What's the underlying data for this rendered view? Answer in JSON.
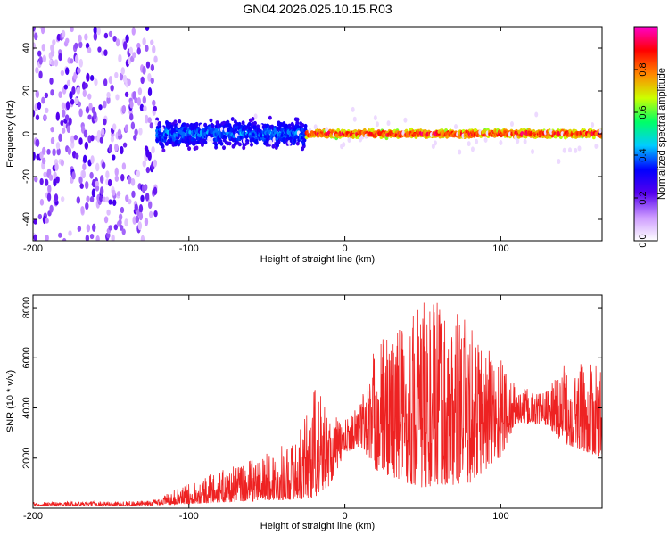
{
  "title": "GN04.2026.025.10.15.R03",
  "chart_data": [
    {
      "type": "heatmap",
      "name": "spectrogram",
      "xlabel": "Height of straight line (km)",
      "ylabel": "Frequency (Hz)",
      "xlim": [
        -200,
        165
      ],
      "ylim": [
        -50,
        50
      ],
      "xticks": [
        -200,
        -100,
        0,
        100
      ],
      "yticks": [
        -40,
        -20,
        0,
        20,
        40
      ],
      "colorbar": {
        "label": "Normalized spectral amplitude",
        "range": [
          0,
          1
        ],
        "ticks": [
          0.0,
          0.2,
          0.4,
          0.6,
          0.8
        ],
        "tick_labels": [
          "0.0",
          "0.2",
          "0.4",
          "0.6",
          "0.8"
        ],
        "colormap": [
          "#ffffff",
          "#cc99ff",
          "#5500ee",
          "#0000ff",
          "#00ccff",
          "#00ff66",
          "#ccff00",
          "#ff8800",
          "#ff0000",
          "#ff00cc"
        ]
      },
      "regions": [
        {
          "x": [
            -200,
            -122
          ],
          "description": "broadband noise",
          "amplitude": [
            0.05,
            0.25
          ],
          "freq_spread": 50
        },
        {
          "x": [
            -122,
            -25
          ],
          "description": "broad signal band",
          "amplitude": [
            0.15,
            0.45
          ],
          "freq_spread": 8
        },
        {
          "x": [
            -25,
            165
          ],
          "description": "narrow signal line",
          "amplitude": [
            0.5,
            1.0
          ],
          "freq_spread": 2
        }
      ]
    },
    {
      "type": "line",
      "name": "snr",
      "xlabel": "Height of straight line (km)",
      "ylabel": "SNR (10 * v/v)",
      "xlim": [
        -200,
        165
      ],
      "ylim": [
        0,
        8500
      ],
      "xticks": [
        -200,
        -100,
        0,
        100
      ],
      "yticks": [
        2000,
        4000,
        6000,
        8000
      ],
      "series_color": "#ee2222",
      "envelope": [
        {
          "x": -200,
          "baseline": 100,
          "peak": 250
        },
        {
          "x": -125,
          "baseline": 100,
          "peak": 300
        },
        {
          "x": -110,
          "baseline": 150,
          "peak": 700
        },
        {
          "x": -90,
          "baseline": 200,
          "peak": 1300
        },
        {
          "x": -70,
          "baseline": 250,
          "peak": 1700
        },
        {
          "x": -50,
          "baseline": 300,
          "peak": 2200
        },
        {
          "x": -30,
          "baseline": 350,
          "peak": 2800
        },
        {
          "x": -20,
          "baseline": 400,
          "peak": 5200
        },
        {
          "x": -10,
          "baseline": 900,
          "peak": 3800
        },
        {
          "x": 0,
          "baseline": 2200,
          "peak": 3500
        },
        {
          "x": 10,
          "baseline": 2500,
          "peak": 4300
        },
        {
          "x": 20,
          "baseline": 1500,
          "peak": 6700
        },
        {
          "x": 40,
          "baseline": 1000,
          "peak": 7800
        },
        {
          "x": 50,
          "baseline": 800,
          "peak": 8500
        },
        {
          "x": 80,
          "baseline": 1000,
          "peak": 7500
        },
        {
          "x": 100,
          "baseline": 2000,
          "peak": 6200
        },
        {
          "x": 110,
          "baseline": 3400,
          "peak": 4800
        },
        {
          "x": 130,
          "baseline": 3300,
          "peak": 4700
        },
        {
          "x": 140,
          "baseline": 2600,
          "peak": 5800
        },
        {
          "x": 165,
          "baseline": 2000,
          "peak": 5700
        }
      ]
    }
  ]
}
